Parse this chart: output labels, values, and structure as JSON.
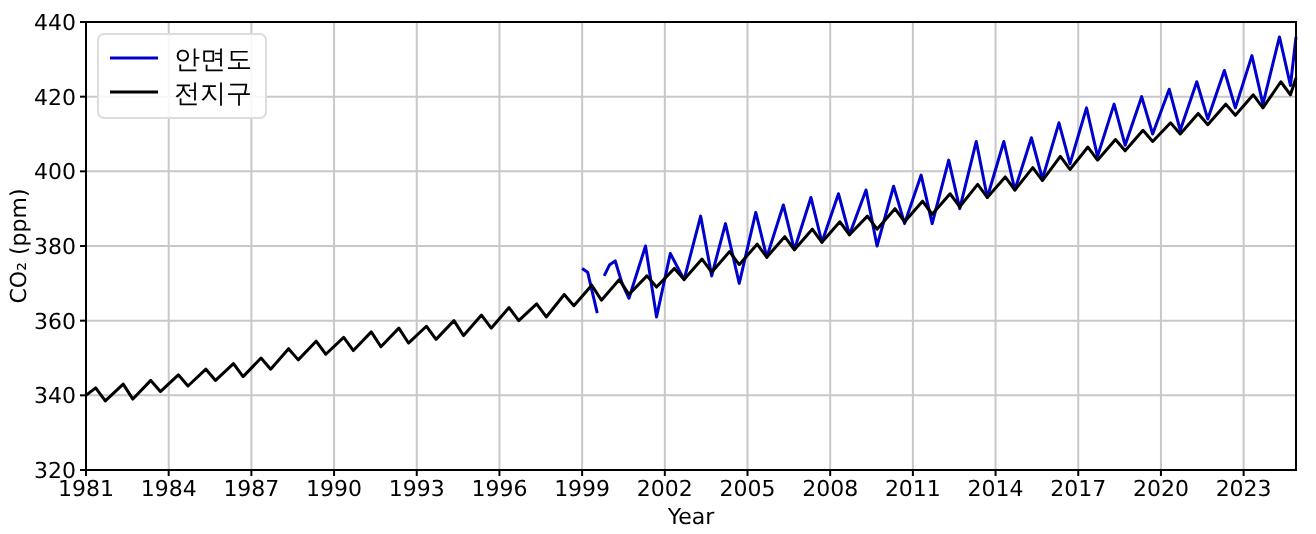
{
  "chart_data": {
    "type": "line",
    "xlabel": "Year",
    "ylabel": "CO₂ (ppm)",
    "xlim": [
      1981,
      2024.9
    ],
    "xticks": [
      1981,
      1984,
      1987,
      1990,
      1993,
      1996,
      1999,
      2002,
      2005,
      2008,
      2011,
      2014,
      2017,
      2020,
      2023
    ],
    "ylim": [
      320,
      440
    ],
    "yticks": [
      320,
      340,
      360,
      380,
      400,
      420,
      440
    ],
    "grid": true,
    "legend": "top left",
    "marker": "none",
    "line_style": "solid",
    "series": [
      {
        "color": "#0000cc",
        "x": [
          1999.0,
          1999.2,
          1999.55
        ],
        "values": [
          374,
          373,
          362
        ]
      },
      {
        "name": "안면도",
        "color": "#0000cc",
        "x": [
          1999.8,
          2000.0,
          2000.2,
          2000.45,
          2000.7,
          2001.3,
          2001.7,
          2002.2,
          2002.7,
          2003.3,
          2003.7,
          2004.2,
          2004.7,
          2005.3,
          2005.7,
          2006.3,
          2006.7,
          2007.3,
          2007.7,
          2008.3,
          2008.7,
          2009.3,
          2009.7,
          2010.3,
          2010.7,
          2011.3,
          2011.7,
          2012.3,
          2012.7,
          2013.3,
          2013.7,
          2014.3,
          2014.7,
          2015.3,
          2015.7,
          2016.3,
          2016.7,
          2017.3,
          2017.7,
          2018.3,
          2018.7,
          2019.3,
          2019.7,
          2020.3,
          2020.7,
          2021.3,
          2021.7,
          2022.3,
          2022.7,
          2023.3,
          2023.7,
          2024.3,
          2024.7,
          2024.9
        ],
        "values": [
          372,
          375,
          376,
          370,
          366,
          380,
          361,
          378,
          371,
          388,
          372,
          386,
          370,
          389,
          377,
          391,
          379,
          393,
          381,
          394,
          383,
          395,
          380,
          396,
          386,
          399,
          386,
          403,
          390,
          408,
          393,
          408,
          395,
          409,
          398,
          413,
          402,
          417,
          404,
          418,
          407,
          420,
          410,
          422,
          411,
          424,
          414,
          427,
          417,
          431,
          418,
          436,
          423,
          436
        ]
      },
      {
        "name": "전지구",
        "color": "#000000",
        "x": [
          1981.0,
          1981.35,
          1981.7,
          1982.35,
          1982.7,
          1983.35,
          1983.7,
          1984.35,
          1984.7,
          1985.35,
          1985.7,
          1986.35,
          1986.7,
          1987.35,
          1987.7,
          1988.35,
          1988.7,
          1989.35,
          1989.7,
          1990.35,
          1990.7,
          1991.35,
          1991.7,
          1992.35,
          1992.7,
          1993.35,
          1993.7,
          1994.35,
          1994.7,
          1995.35,
          1995.7,
          1996.35,
          1996.7,
          1997.35,
          1997.7,
          1998.35,
          1998.7,
          1999.35,
          1999.7,
          2000.35,
          2000.7,
          2001.35,
          2001.7,
          2002.35,
          2002.7,
          2003.35,
          2003.7,
          2004.35,
          2004.7,
          2005.35,
          2005.7,
          2006.35,
          2006.7,
          2007.35,
          2007.7,
          2008.35,
          2008.7,
          2009.35,
          2009.7,
          2010.35,
          2010.7,
          2011.35,
          2011.7,
          2012.35,
          2012.7,
          2013.35,
          2013.7,
          2014.35,
          2014.7,
          2015.35,
          2015.7,
          2016.35,
          2016.7,
          2017.35,
          2017.7,
          2018.35,
          2018.7,
          2019.35,
          2019.7,
          2020.35,
          2020.7,
          2021.35,
          2021.7,
          2022.35,
          2022.7,
          2023.35,
          2023.7,
          2024.35,
          2024.7,
          2024.9
        ],
        "values": [
          340,
          342,
          338.5,
          343,
          339,
          344,
          341,
          345.5,
          342.5,
          347,
          344,
          348.5,
          345,
          350,
          347,
          352.5,
          349.5,
          354.5,
          351,
          355.5,
          352,
          357,
          353,
          358,
          354,
          358.5,
          355,
          360,
          356,
          361.5,
          358,
          363.5,
          360,
          364.5,
          361,
          367,
          364,
          369.5,
          365.5,
          371,
          367,
          372,
          369,
          374,
          371,
          376.5,
          373,
          378.5,
          375,
          380.5,
          377,
          382.5,
          379,
          384.5,
          381,
          386.5,
          383,
          388,
          384.5,
          390,
          386.5,
          392,
          388.5,
          394,
          390.5,
          396.5,
          393,
          398.5,
          395,
          401,
          397.5,
          404,
          400.5,
          406.5,
          403,
          408.5,
          405.5,
          411,
          408,
          413,
          410,
          415.5,
          412.5,
          418,
          415,
          420.5,
          417,
          424,
          420.5,
          425
        ]
      }
    ]
  }
}
